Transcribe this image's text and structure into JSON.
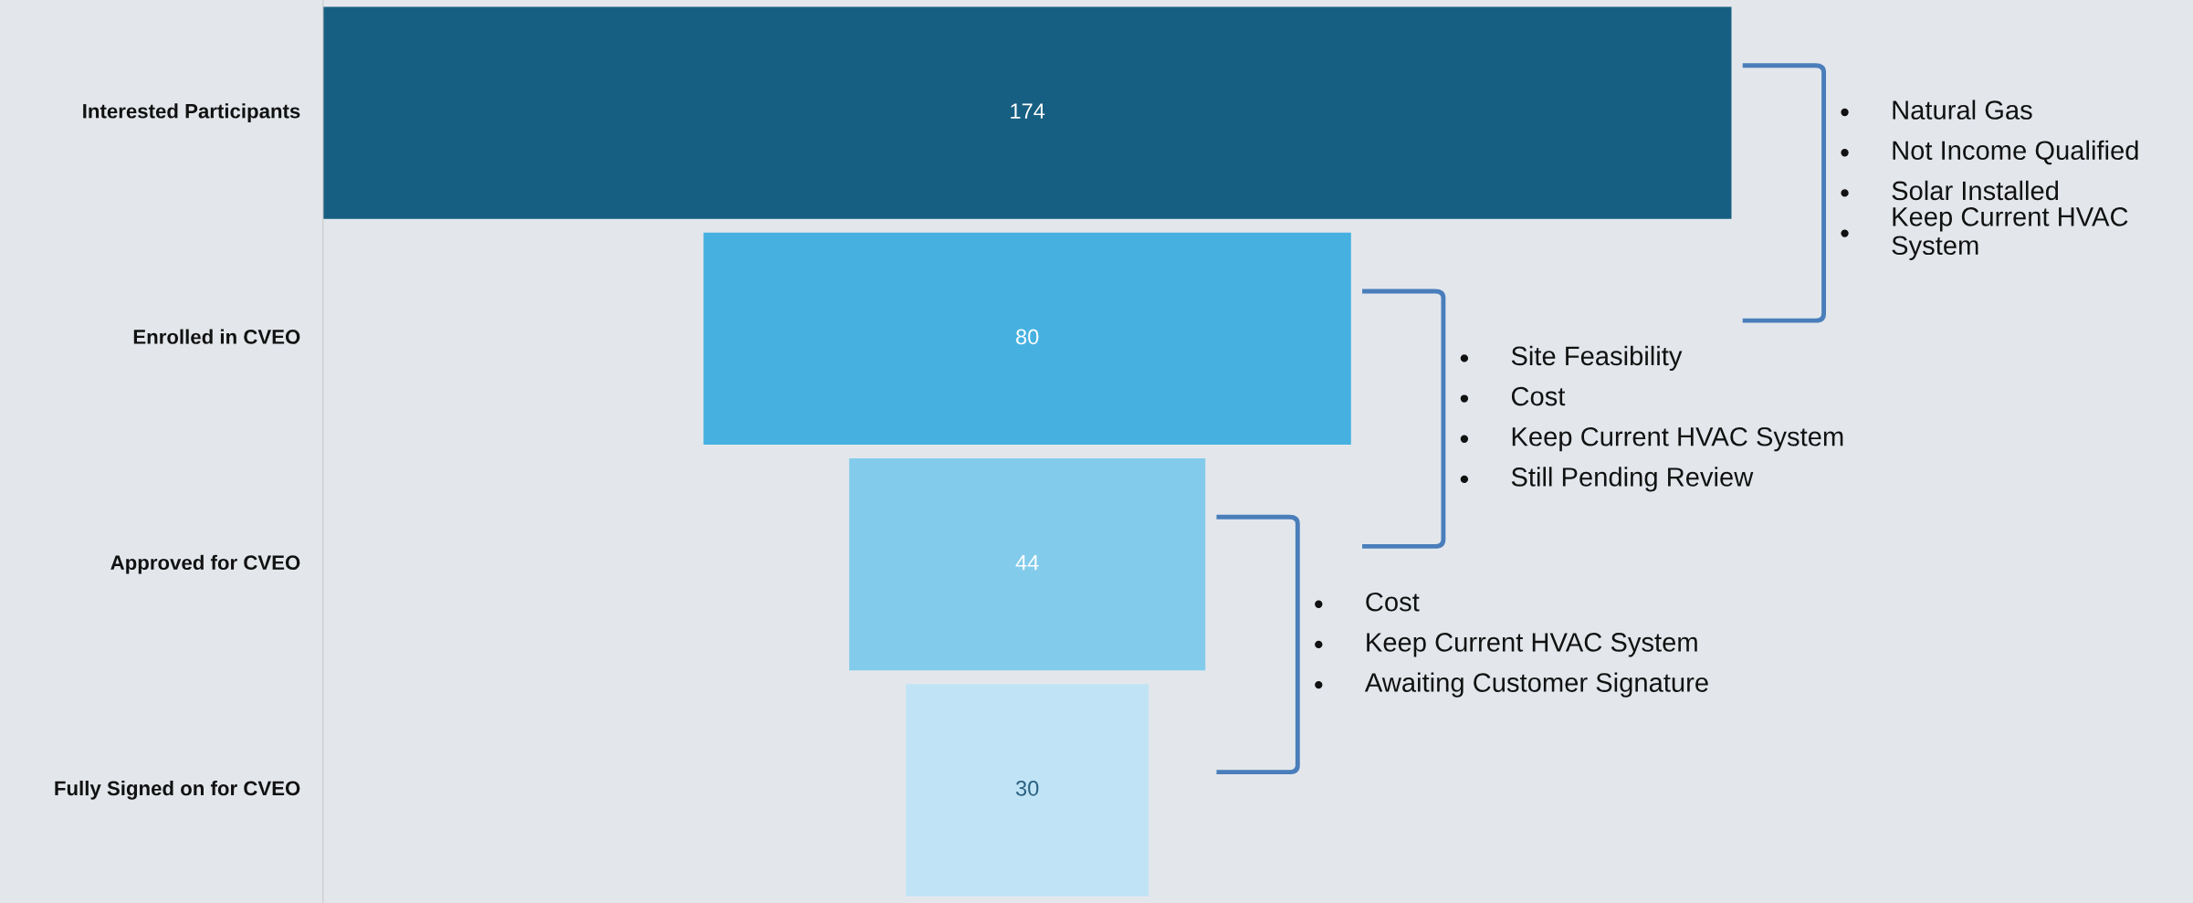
{
  "chart_data": {
    "type": "other",
    "categories": [
      "Interested Participants",
      "Enrolled in CVEO",
      "Approved for CVEO",
      "Fully Signed on for CVEO"
    ],
    "values": [
      174,
      80,
      44,
      30
    ],
    "colors": [
      "#175f82",
      "#46b1e1",
      "#83cbeb",
      "#c0e4f5"
    ],
    "data_labels": true,
    "annotations": [
      "Natural Gas\nNot Income Qualified\nSolar Installed\nKeep Current HVAC System",
      "Site Feasibility\nCost\nKeep Current HVAC System\nStill Pending Review",
      "Cost\nKeep Current HVAC System\nAwaiting Customer Signature"
    ]
  }
}
